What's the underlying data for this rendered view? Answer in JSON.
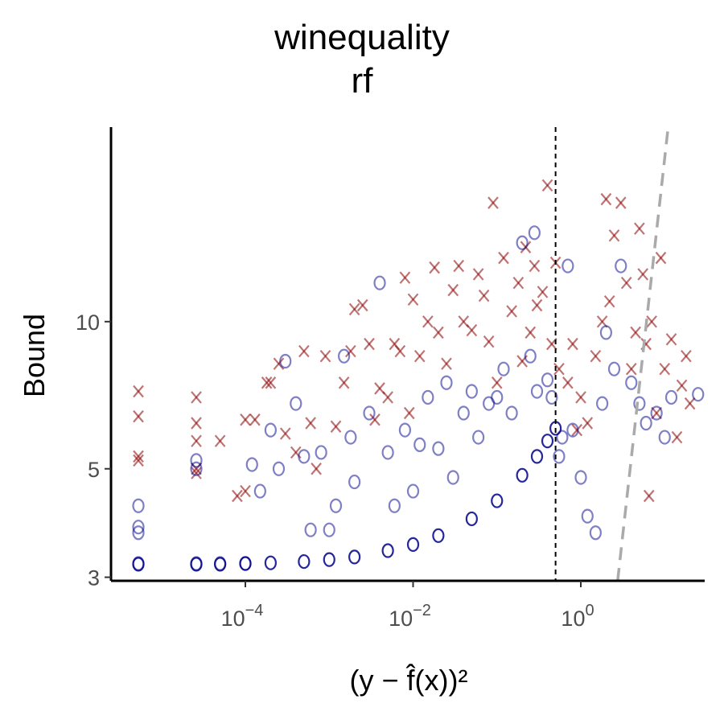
{
  "chart_data": {
    "type": "scatter",
    "title": "winequality",
    "subtitle": "rf",
    "xlabel": "(y − f̂(x))²",
    "ylabel": "Bound",
    "x_scale": "log10",
    "y_scale": "log10",
    "xlim": [
      2.5e-06,
      30
    ],
    "ylim": [
      2.95,
      25
    ],
    "x_ticks": [
      {
        "value": 0.0001,
        "label_base": "10",
        "label_exp": "−4"
      },
      {
        "value": 0.01,
        "label_base": "10",
        "label_exp": "−2"
      },
      {
        "value": 1,
        "label_base": "10",
        "label_exp": "0"
      }
    ],
    "y_ticks": [
      {
        "value": 3,
        "label": "3"
      },
      {
        "value": 5,
        "label": "5"
      },
      {
        "value": 10,
        "label": "10"
      }
    ],
    "grid": false,
    "legend": "none",
    "reference_lines": [
      {
        "type": "vertical",
        "x": 0.5,
        "style": "dashed",
        "color": "#000000"
      },
      {
        "type": "diagonal",
        "from": [
          2.75,
          2.95
        ],
        "to": [
          11,
          25
        ],
        "style": "dashed",
        "color": "#aaaaaa"
      }
    ],
    "series": [
      {
        "marker": "x",
        "color": "#8b0000",
        "points": [
          [
            5.3e-06,
            7.2
          ],
          [
            5.3e-06,
            6.4
          ],
          [
            5.3e-06,
            5.2
          ],
          [
            5.3e-06,
            5.3
          ],
          [
            2.6e-05,
            7.0
          ],
          [
            2.6e-05,
            6.2
          ],
          [
            2.6e-05,
            5.7
          ],
          [
            2.6e-05,
            4.9
          ],
          [
            2.6e-05,
            5.0
          ],
          [
            5e-05,
            5.7
          ],
          [
            0.0001,
            6.3
          ],
          [
            0.00013,
            6.3
          ],
          [
            0.0001,
            4.5
          ],
          [
            8e-05,
            4.4
          ],
          [
            0.00018,
            7.5
          ],
          [
            0.0002,
            7.5
          ],
          [
            0.00025,
            8.2
          ],
          [
            0.0003,
            5.9
          ],
          [
            0.0004,
            5.4
          ],
          [
            0.0005,
            8.7
          ],
          [
            0.0006,
            6.2
          ],
          [
            0.0007,
            5.0
          ],
          [
            0.0009,
            8.5
          ],
          [
            0.0012,
            6.1
          ],
          [
            0.0015,
            7.5
          ],
          [
            0.0018,
            8.7
          ],
          [
            0.002,
            10.6
          ],
          [
            0.0025,
            10.8
          ],
          [
            0.003,
            9.0
          ],
          [
            0.0035,
            6.3
          ],
          [
            0.004,
            7.3
          ],
          [
            0.005,
            7.0
          ],
          [
            0.006,
            9.0
          ],
          [
            0.007,
            8.7
          ],
          [
            0.008,
            12.3
          ],
          [
            0.009,
            6.5
          ],
          [
            0.01,
            11.1
          ],
          [
            0.012,
            8.5
          ],
          [
            0.015,
            10.0
          ],
          [
            0.018,
            12.9
          ],
          [
            0.02,
            9.5
          ],
          [
            0.025,
            8.2
          ],
          [
            0.03,
            11.6
          ],
          [
            0.035,
            13.0
          ],
          [
            0.04,
            10.0
          ],
          [
            0.05,
            9.6
          ],
          [
            0.06,
            12.5
          ],
          [
            0.07,
            11.3
          ],
          [
            0.08,
            9.1
          ],
          [
            0.09,
            17.5
          ],
          [
            0.1,
            7.5
          ],
          [
            0.12,
            13.5
          ],
          [
            0.15,
            10.5
          ],
          [
            0.18,
            12.0
          ],
          [
            0.2,
            8.3
          ],
          [
            0.22,
            14.2
          ],
          [
            0.25,
            9.5
          ],
          [
            0.28,
            13.0
          ],
          [
            0.3,
            10.8
          ],
          [
            0.35,
            11.5
          ],
          [
            0.4,
            19.0
          ],
          [
            0.45,
            9.0
          ],
          [
            0.5,
            13.2
          ],
          [
            0.55,
            8.0
          ],
          [
            0.7,
            7.5
          ],
          [
            0.8,
            9.0
          ],
          [
            0.9,
            6.0
          ],
          [
            1.0,
            7.0
          ],
          [
            1.2,
            6.2
          ],
          [
            1.5,
            8.5
          ],
          [
            1.8,
            10.0
          ],
          [
            2.0,
            17.8
          ],
          [
            2.2,
            11.0
          ],
          [
            2.5,
            15.0
          ],
          [
            3.0,
            17.5
          ],
          [
            3.5,
            12.0
          ],
          [
            4.0,
            8.0
          ],
          [
            4.5,
            9.5
          ],
          [
            5.0,
            15.5
          ],
          [
            5.5,
            12.5
          ],
          [
            6.0,
            9.0
          ],
          [
            6.5,
            4.4
          ],
          [
            7.0,
            10.0
          ],
          [
            8.0,
            6.5
          ],
          [
            9.0,
            13.5
          ],
          [
            10.0,
            8.0
          ],
          [
            12.0,
            9.2
          ],
          [
            14.0,
            5.8
          ],
          [
            16.0,
            7.4
          ],
          [
            18.0,
            8.5
          ],
          [
            20.0,
            6.8
          ]
        ]
      },
      {
        "marker": "o",
        "color": "#00008b",
        "points": [
          [
            5.3e-06,
            3.2
          ],
          [
            5.3e-06,
            3.7
          ],
          [
            5.3e-06,
            3.8
          ],
          [
            5.3e-06,
            4.2
          ],
          [
            2.6e-05,
            3.2
          ],
          [
            2.6e-05,
            5.2
          ],
          [
            2.6e-05,
            5.0
          ],
          [
            5e-05,
            3.2
          ],
          [
            0.0001,
            3.2
          ],
          [
            0.00012,
            5.1
          ],
          [
            0.00015,
            4.5
          ],
          [
            0.0002,
            6.0
          ],
          [
            0.00025,
            5.0
          ],
          [
            0.0003,
            8.3
          ],
          [
            0.0004,
            6.8
          ],
          [
            0.0005,
            5.3
          ],
          [
            0.0006,
            3.75
          ],
          [
            0.0008,
            5.4
          ],
          [
            0.001,
            3.75
          ],
          [
            0.0012,
            4.2
          ],
          [
            0.0015,
            8.5
          ],
          [
            0.0018,
            5.8
          ],
          [
            0.002,
            4.7
          ],
          [
            0.003,
            6.5
          ],
          [
            0.004,
            12.0
          ],
          [
            0.005,
            5.4
          ],
          [
            0.006,
            4.2
          ],
          [
            0.008,
            6.0
          ],
          [
            0.01,
            4.5
          ],
          [
            0.012,
            5.6
          ],
          [
            0.015,
            7.0
          ],
          [
            0.02,
            5.5
          ],
          [
            0.025,
            7.5
          ],
          [
            0.03,
            4.8
          ],
          [
            0.04,
            6.5
          ],
          [
            0.05,
            7.2
          ],
          [
            0.06,
            5.8
          ],
          [
            0.08,
            6.8
          ],
          [
            0.1,
            7.0
          ],
          [
            0.12,
            8.0
          ],
          [
            0.15,
            6.5
          ],
          [
            0.2,
            14.5
          ],
          [
            0.25,
            8.5
          ],
          [
            0.28,
            15.2
          ],
          [
            0.3,
            7.2
          ],
          [
            0.4,
            7.6
          ],
          [
            0.45,
            7.0
          ],
          [
            0.55,
            5.3
          ],
          [
            0.6,
            5.8
          ],
          [
            0.7,
            13.0
          ],
          [
            0.8,
            6.0
          ],
          [
            1.0,
            4.8
          ],
          [
            1.2,
            4.0
          ],
          [
            1.5,
            3.7
          ],
          [
            1.8,
            6.8
          ],
          [
            2.0,
            9.5
          ],
          [
            2.5,
            8.0
          ],
          [
            3.0,
            13.0
          ],
          [
            4.0,
            7.5
          ],
          [
            5.0,
            6.8
          ],
          [
            6.0,
            6.2
          ],
          [
            8.0,
            6.5
          ],
          [
            10.0,
            5.8
          ],
          [
            12.0,
            7.0
          ],
          [
            25.0,
            7.1
          ]
        ]
      },
      {
        "marker": "o",
        "color": "#00008b",
        "bound_curve": [
          [
            5.3e-06,
            3.19
          ],
          [
            2.6e-05,
            3.19
          ],
          [
            5e-05,
            3.19
          ],
          [
            0.0001,
            3.2
          ],
          [
            0.0002,
            3.21
          ],
          [
            0.0005,
            3.23
          ],
          [
            0.001,
            3.26
          ],
          [
            0.002,
            3.3
          ],
          [
            0.005,
            3.4
          ],
          [
            0.01,
            3.5
          ],
          [
            0.02,
            3.65
          ],
          [
            0.05,
            3.95
          ],
          [
            0.1,
            4.3
          ],
          [
            0.2,
            4.85
          ],
          [
            0.3,
            5.3
          ],
          [
            0.4,
            5.7
          ],
          [
            0.5,
            6.05
          ]
        ]
      }
    ]
  }
}
